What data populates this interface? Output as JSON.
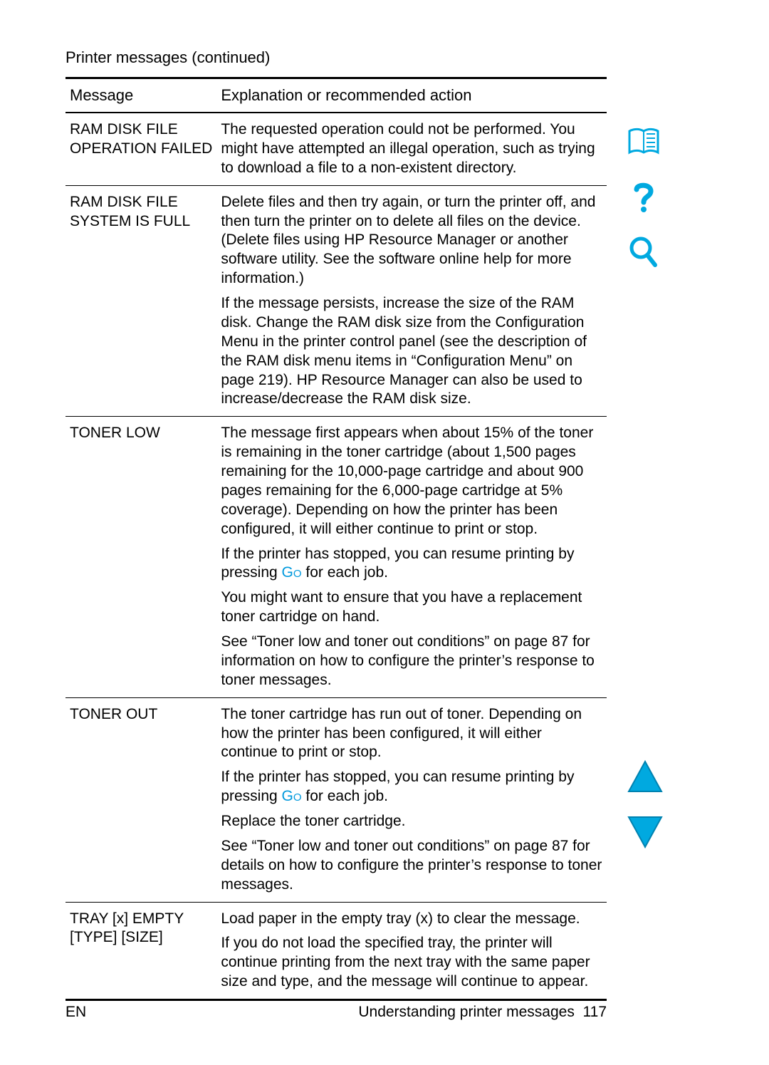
{
  "caption": "Printer messages  (continued)",
  "headers": {
    "message": "Message",
    "action": "Explanation or recommended action"
  },
  "rows": [
    {
      "message_lines": [
        "RAM DISK FILE",
        "OPERATION FAILED"
      ],
      "paras": [
        {
          "segments": [
            {
              "t": "text",
              "v": "The requested operation could not be performed. You might have attempted an illegal operation, such as trying to download a file to a non-existent directory."
            }
          ]
        }
      ]
    },
    {
      "message_lines": [
        "RAM DISK FILE",
        "SYSTEM IS FULL"
      ],
      "paras": [
        {
          "segments": [
            {
              "t": "text",
              "v": "Delete files and then try again, or turn the printer off, and then turn the printer on to delete all files on the device. (Delete files using HP Resource Manager or another software utility. See the software online help for more information.)"
            }
          ]
        },
        {
          "segments": [
            {
              "t": "text",
              "v": "If the message persists, increase the size of the RAM disk. Change the RAM disk size from the Configuration Menu in the printer control panel (see the description of the RAM disk menu items in “Configuration Menu” on page 219). HP Resource Manager can also be used to increase/decrease the RAM disk size."
            }
          ]
        }
      ]
    },
    {
      "message_lines": [
        "TONER LOW"
      ],
      "paras": [
        {
          "segments": [
            {
              "t": "text",
              "v": "The message first appears when about 15% of the toner is remaining in the toner cartridge (about 1,500 pages remaining for the 10,000-page cartridge and about 900 pages remaining for the 6,000-page cartridge at 5% coverage). Depending on how the printer has been configured, it will either continue to print or stop."
            }
          ]
        },
        {
          "segments": [
            {
              "t": "text",
              "v": "If the printer has stopped, you can resume printing by pressing "
            },
            {
              "t": "go",
              "v": "Go"
            },
            {
              "t": "text",
              "v": " for each job."
            }
          ]
        },
        {
          "segments": [
            {
              "t": "text",
              "v": "You might want to ensure that you have a replacement toner cartridge on hand."
            }
          ]
        },
        {
          "segments": [
            {
              "t": "text",
              "v": "See “Toner low and toner out conditions” on page 87 for information on how to configure the printer’s response to toner messages."
            }
          ]
        }
      ]
    },
    {
      "message_lines": [
        "TONER OUT"
      ],
      "paras": [
        {
          "segments": [
            {
              "t": "text",
              "v": "The toner cartridge has run out of toner. Depending on how the printer has been configured, it will either continue to print or stop."
            }
          ]
        },
        {
          "segments": [
            {
              "t": "text",
              "v": "If the printer has stopped, you can resume printing by pressing "
            },
            {
              "t": "go",
              "v": "Go"
            },
            {
              "t": "text",
              "v": " for each job."
            }
          ]
        },
        {
          "segments": [
            {
              "t": "text",
              "v": "Replace the toner cartridge."
            }
          ]
        },
        {
          "segments": [
            {
              "t": "text",
              "v": "See “Toner low and toner out conditions” on page 87 for details on how to configure the printer’s response to toner messages."
            }
          ]
        }
      ]
    },
    {
      "message_lines": [
        "TRAY [x] EMPTY",
        "[TYPE] [SIZE]"
      ],
      "paras": [
        {
          "segments": [
            {
              "t": "text",
              "v": "Load paper in the empty tray (x) to clear the message."
            }
          ]
        },
        {
          "segments": [
            {
              "t": "text",
              "v": "If you do not load the specified tray, the printer will continue printing from the next tray with the same paper size and type, and the message will continue to appear."
            }
          ]
        }
      ]
    }
  ],
  "footer": {
    "left": "EN",
    "right_text": "Understanding printer messages",
    "page": "117"
  },
  "colors": {
    "accent": "#00a9e0",
    "dark_accent": "#0082b0",
    "link": "#0099dd"
  }
}
